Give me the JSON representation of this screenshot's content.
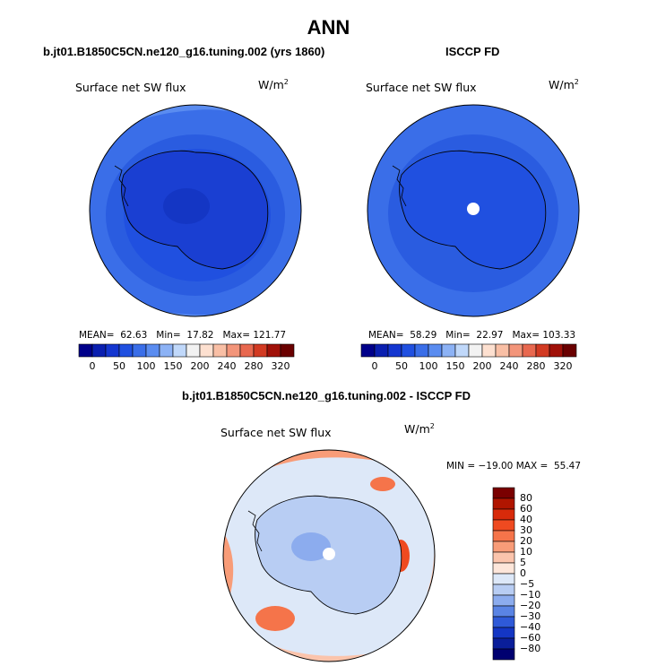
{
  "page_title": "ANN",
  "panels": [
    {
      "subtitle": "b.jt01.B1850C5CN.ne120_g16.tuning.002 (yrs 1860)",
      "field": "Surface net SW flux",
      "units": "W/m",
      "units_sup": "2",
      "mean_label": "MEAN=",
      "mean": "62.63",
      "min_label": "Min=",
      "min": "17.82",
      "max_label": "Max=",
      "max": "121.77"
    },
    {
      "subtitle": "ISCCP FD",
      "field": "Surface net SW flux",
      "units": "W/m",
      "units_sup": "2",
      "mean_label": "MEAN=",
      "mean": "58.29",
      "min_label": "Min=",
      "min": "22.97",
      "max_label": "Max=",
      "max": "103.33"
    }
  ],
  "diff_panel": {
    "subtitle": "b.jt01.B1850C5CN.ne120_g16.tuning.002 - ISCCP FD",
    "field": "Surface net SW flux",
    "units": "W/m",
    "units_sup": "2",
    "min_label": "MIN =",
    "min": "−19.00",
    "max_label": "MAX =",
    "max": "55.47"
  },
  "chart_data": [
    {
      "type": "heatmap",
      "title": "Surface net SW flux",
      "subtitle": "b.jt01.B1850C5CN.ne120_g16.tuning.002 (yrs 1860)",
      "projection": "south polar stereographic",
      "units": "W/m2",
      "stats": {
        "mean": 62.63,
        "min": 17.82,
        "max": 121.77
      },
      "colorbar": {
        "orientation": "horizontal",
        "tick_labels": [
          "0",
          "50",
          "100",
          "150",
          "200",
          "240",
          "280",
          "320"
        ],
        "levels": [
          0,
          25,
          50,
          75,
          100,
          125,
          150,
          175,
          200,
          220,
          240,
          260,
          280,
          300,
          320
        ],
        "colors": [
          "#00008a",
          "#0a1fb0",
          "#1436d0",
          "#2050e0",
          "#3a6ee8",
          "#5a8cf0",
          "#8cb2f5",
          "#c0d8fa",
          "#f2f2f2",
          "#fde0d0",
          "#f9bfa5",
          "#f3957a",
          "#e8684f",
          "#d23a22",
          "#a01008",
          "#6a0000"
        ]
      }
    },
    {
      "type": "heatmap",
      "title": "Surface net SW flux",
      "subtitle": "ISCCP FD",
      "projection": "south polar stereographic",
      "units": "W/m2",
      "stats": {
        "mean": 58.29,
        "min": 22.97,
        "max": 103.33
      },
      "colorbar": {
        "orientation": "horizontal",
        "tick_labels": [
          "0",
          "50",
          "100",
          "150",
          "200",
          "240",
          "280",
          "320"
        ],
        "levels": [
          0,
          25,
          50,
          75,
          100,
          125,
          150,
          175,
          200,
          220,
          240,
          260,
          280,
          300,
          320
        ],
        "colors": [
          "#00008a",
          "#0a1fb0",
          "#1436d0",
          "#2050e0",
          "#3a6ee8",
          "#5a8cf0",
          "#8cb2f5",
          "#c0d8fa",
          "#f2f2f2",
          "#fde0d0",
          "#f9bfa5",
          "#f3957a",
          "#e8684f",
          "#d23a22",
          "#a01008",
          "#6a0000"
        ]
      }
    },
    {
      "type": "heatmap",
      "title": "Surface net SW flux",
      "subtitle": "b.jt01.B1850C5CN.ne120_g16.tuning.002 - ISCCP FD",
      "projection": "south polar stereographic",
      "units": "W/m2",
      "stats": {
        "min": -19.0,
        "max": 55.47
      },
      "colorbar": {
        "orientation": "vertical",
        "tick_labels": [
          "80",
          "60",
          "40",
          "30",
          "20",
          "10",
          "5",
          "0",
          "−5",
          "−10",
          "−20",
          "−30",
          "−40",
          "−60",
          "−80"
        ],
        "colors": [
          "#7a0000",
          "#b01500",
          "#d82a0a",
          "#ef4a20",
          "#f5744a",
          "#f89c78",
          "#fbc4ac",
          "#fde6da",
          "#dde8f8",
          "#b8cdf3",
          "#8cacee",
          "#5a84e4",
          "#2f5ad8",
          "#1436c4",
          "#0a1e9a",
          "#000070"
        ]
      }
    }
  ]
}
